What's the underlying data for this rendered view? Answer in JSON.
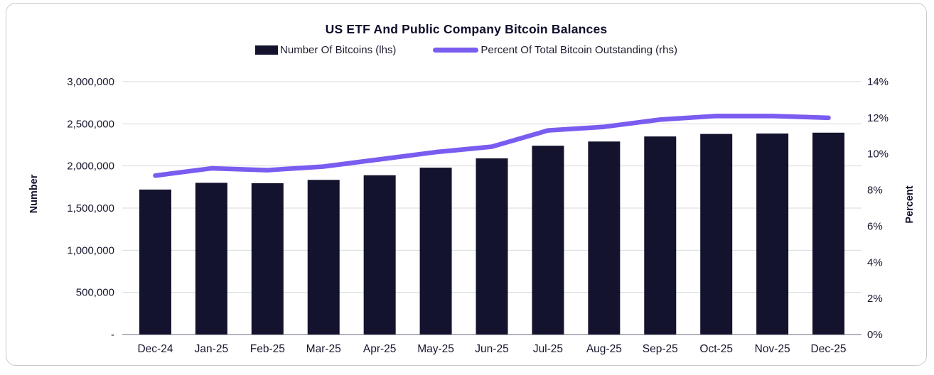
{
  "chart_data": {
    "type": "combo-bar-line",
    "title": "US ETF And Public Company Bitcoin Balances",
    "categories": [
      "Dec-24",
      "Jan-25",
      "Feb-25",
      "Mar-25",
      "Apr-25",
      "May-25",
      "Jun-25",
      "Jul-25",
      "Aug-25",
      "Sep-25",
      "Oct-25",
      "Nov-25",
      "Dec-25"
    ],
    "series": [
      {
        "name": "Number Of Bitcoins (lhs)",
        "type": "bar",
        "axis": "left",
        "color": "#14132e",
        "values": [
          1720000,
          1800000,
          1795000,
          1835000,
          1890000,
          1980000,
          2090000,
          2240000,
          2290000,
          2350000,
          2380000,
          2385000,
          2395000
        ]
      },
      {
        "name": "Percent Of Total Bitcoin Outstanding (rhs)",
        "type": "line",
        "axis": "right",
        "color": "#7a5cf0",
        "values": [
          8.8,
          9.2,
          9.1,
          9.3,
          9.7,
          10.1,
          10.4,
          11.3,
          11.5,
          11.9,
          12.1,
          12.1,
          12.0
        ]
      }
    ],
    "left_axis": {
      "label": "Number",
      "min": 0,
      "max": 3000000,
      "tick_step": 500000,
      "ticks": [
        {
          "value": 3000000,
          "label": "3,000,000"
        },
        {
          "value": 2500000,
          "label": "2,500,000"
        },
        {
          "value": 2000000,
          "label": "2,000,000"
        },
        {
          "value": 1500000,
          "label": "1,500,000"
        },
        {
          "value": 1000000,
          "label": "1,000,000"
        },
        {
          "value": 500000,
          "label": "500,000"
        },
        {
          "value": 0,
          "label": "-"
        }
      ]
    },
    "right_axis": {
      "label": "Percent",
      "min": 0,
      "max": 14,
      "tick_step": 2,
      "ticks": [
        {
          "value": 14,
          "label": "14%"
        },
        {
          "value": 12,
          "label": "12%"
        },
        {
          "value": 10,
          "label": "10%"
        },
        {
          "value": 8,
          "label": "8%"
        },
        {
          "value": 6,
          "label": "6%"
        },
        {
          "value": 4,
          "label": "4%"
        },
        {
          "value": 2,
          "label": "2%"
        },
        {
          "value": 0,
          "label": "0%"
        }
      ]
    },
    "grid": "horizontal-at-left-ticks",
    "legend_position": "top"
  },
  "colors": {
    "bar": "#14132e",
    "line": "#7a5cf0",
    "grid_line": "#d7d7e0",
    "baseline": "#9b9baa",
    "text": "#16162d",
    "card_border": "#c9c9cf",
    "background": "#ffffff"
  }
}
